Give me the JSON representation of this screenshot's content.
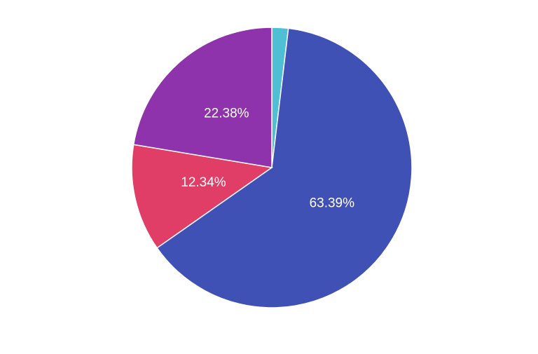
{
  "chart_data": {
    "type": "pie",
    "values": [
      1.89,
      63.39,
      12.34,
      22.38
    ],
    "value_labels": [
      null,
      "63.39%",
      "12.34%",
      "22.38%"
    ],
    "colors": [
      "#4fbfd6",
      "#3f51b5",
      "#e03e67",
      "#8e33ab"
    ]
  }
}
